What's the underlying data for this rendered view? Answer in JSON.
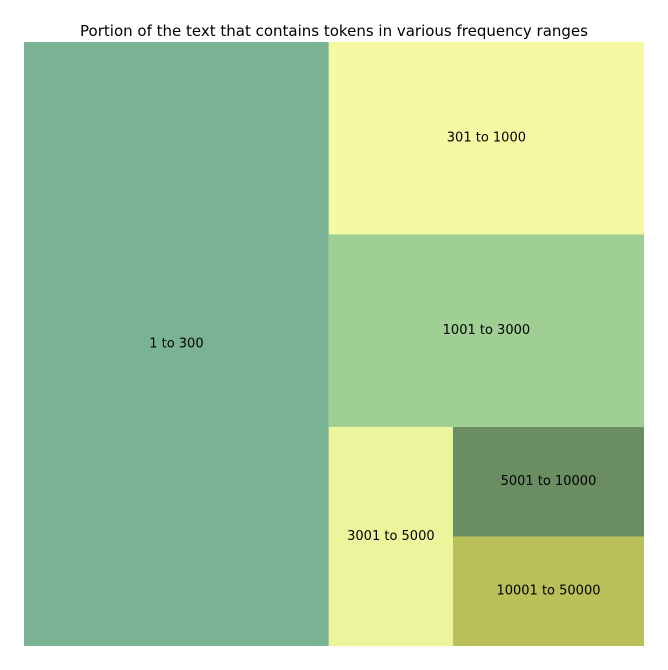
{
  "chart_data": {
    "type": "treemap",
    "title": "Portion of the text that contains tokens in various frequency ranges",
    "items": [
      {
        "label": "1 to 300",
        "value": 44.0,
        "color": "#7ab394"
      },
      {
        "label": "301 to 1000",
        "value": 14.5,
        "color": "#f5f9a4"
      },
      {
        "label": "1001 to 3000",
        "value": 14.5,
        "color": "#a0cf94"
      },
      {
        "label": "3001 to 5000",
        "value": 6.5,
        "color": "#ecf59b"
      },
      {
        "label": "5001 to 10000",
        "value": 5.0,
        "color": "#6a8e62"
      },
      {
        "label": "10001 to 50000",
        "value": 5.0,
        "color": "#b9c05a"
      }
    ]
  }
}
